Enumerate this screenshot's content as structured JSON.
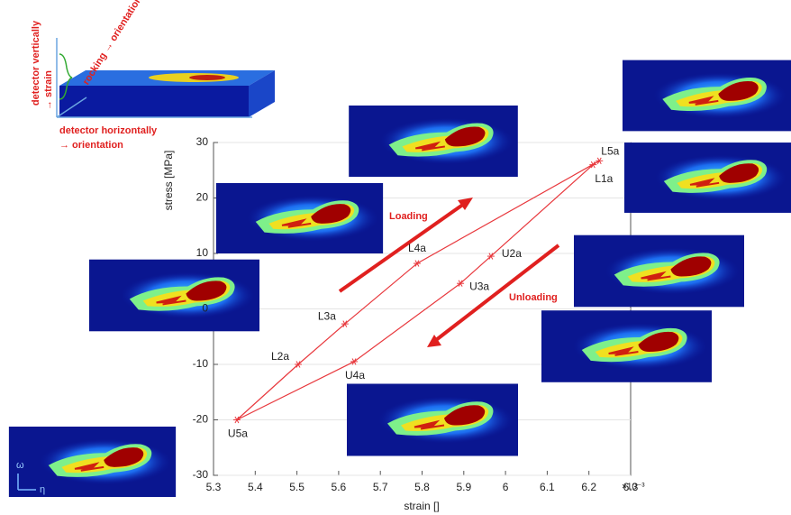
{
  "chart_data": {
    "type": "line",
    "x_label": "strain []",
    "y_label": "stress [MPa]",
    "x_exponent": "×10⁻³",
    "xlim": [
      5.3,
      6.3
    ],
    "xticks": [
      5.3,
      5.4,
      5.5,
      5.6,
      5.7,
      5.8,
      5.9,
      6,
      6.1,
      6.2,
      6.3
    ],
    "ylim": [
      -30,
      30
    ],
    "yticks": [
      -30,
      -20,
      -10,
      0,
      10,
      20,
      30
    ],
    "grid": true,
    "x": [
      6.21,
      5.965,
      5.892,
      5.637,
      5.356,
      5.503,
      5.615,
      5.788,
      6.225
    ],
    "series": [
      {
        "color": "#e8383d",
        "values": [
          26,
          9.5,
          4.6,
          -9.5,
          -20,
          -10,
          -2.7,
          8.2,
          26.7
        ],
        "point_labels": [
          "L1a",
          "U2a",
          "U3a",
          "U4a",
          "U5a",
          "L2a",
          "L3a",
          "L4a",
          "L5a"
        ]
      }
    ],
    "annotations": [
      "Loading",
      "Unloading"
    ],
    "schematic": {
      "vertical": "detector vertically",
      "vertical_arrow": "→ strain",
      "rocking": "rocking → orientation",
      "horizontal": "detector horizontally",
      "horizontal_arrow": "→ orientation"
    },
    "inset_axes": {
      "vertical": "ω",
      "horizontal": "η"
    }
  }
}
